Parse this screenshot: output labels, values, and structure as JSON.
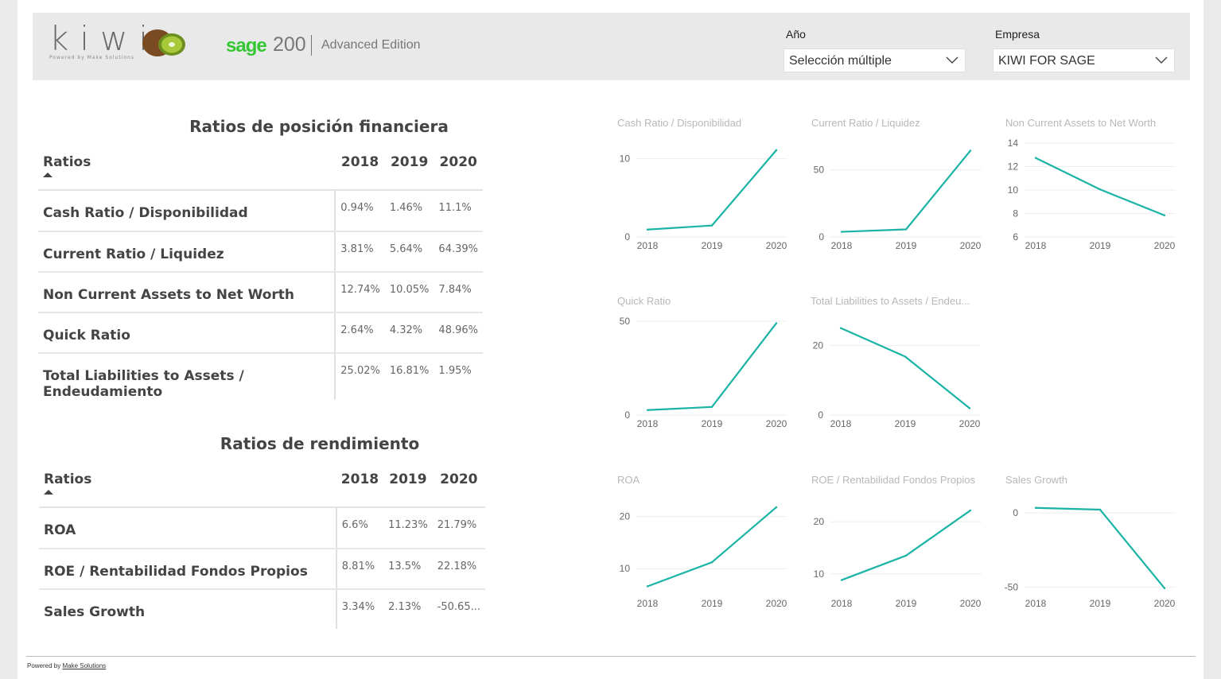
{
  "header": {
    "logo_text": "kiwi",
    "logo_tagline": "Powered by Make Solutions",
    "sage_brand": "sage",
    "sage_number": "200",
    "sage_edition": "Advanced Edition",
    "colors": {
      "kiwi_green": "#8bb63a",
      "sage_green": "#34c733"
    }
  },
  "slicers": {
    "year": {
      "label": "Año",
      "value": "Selección múltiple"
    },
    "company": {
      "label": "Empresa",
      "value": "KIWI FOR SAGE"
    }
  },
  "financial": {
    "title": "Ratios de posición financiera",
    "header": {
      "name": "Ratios",
      "years": [
        "2018",
        "2019",
        "2020"
      ]
    },
    "rows": [
      {
        "name": "Cash Ratio / Disponibilidad",
        "v": [
          "0.94%",
          "1.46%",
          "11.1%"
        ]
      },
      {
        "name": "Current Ratio / Liquidez",
        "v": [
          "3.81%",
          "5.64%",
          "64.39%"
        ]
      },
      {
        "name": "Non Current Assets to Net Worth",
        "v": [
          "12.74%",
          "10.05%",
          "7.84%"
        ]
      },
      {
        "name": "Quick Ratio",
        "v": [
          "2.64%",
          "4.32%",
          "48.96%"
        ]
      },
      {
        "name": "Total Liabilities to Assets / Endeudamiento",
        "v": [
          "25.02%",
          "16.81%",
          "1.95%"
        ]
      }
    ]
  },
  "performance": {
    "title": "Ratios de rendimiento",
    "header": {
      "name": "Ratios",
      "years": [
        "2018",
        "2019",
        "2020"
      ]
    },
    "rows": [
      {
        "name": "ROA",
        "v": [
          "6.6%",
          "11.23%",
          "21.79%"
        ]
      },
      {
        "name": "ROE / Rentabilidad Fondos Propios",
        "v": [
          "8.81%",
          "13.5%",
          "22.18%"
        ]
      },
      {
        "name": "Sales Growth",
        "v": [
          "3.34%",
          "2.13%",
          "-50.65..."
        ]
      }
    ]
  },
  "chart_data": [
    {
      "type": "line",
      "title": "Cash Ratio / Disponibilidad",
      "x": [
        "2018",
        "2019",
        "2020"
      ],
      "values": [
        0.94,
        1.46,
        11.1
      ],
      "yticks": [
        0,
        10
      ],
      "ylim": [
        0,
        12
      ],
      "color": "#1ab3a6"
    },
    {
      "type": "line",
      "title": "Current Ratio / Liquidez",
      "x": [
        "2018",
        "2019",
        "2020"
      ],
      "values": [
        3.81,
        5.64,
        64.39
      ],
      "yticks": [
        0,
        50
      ],
      "ylim": [
        0,
        70
      ],
      "color": "#1ab3a6"
    },
    {
      "type": "line",
      "title": "Non Current Assets to Net Worth",
      "x": [
        "2018",
        "2019",
        "2020"
      ],
      "values": [
        12.74,
        10.05,
        7.84
      ],
      "yticks": [
        6,
        8,
        10,
        12,
        14
      ],
      "ylim": [
        6,
        14
      ],
      "color": "#1ab3a6"
    },
    {
      "type": "line",
      "title": "Quick Ratio",
      "x": [
        "2018",
        "2019",
        "2020"
      ],
      "values": [
        2.64,
        4.32,
        48.96
      ],
      "yticks": [
        0,
        50
      ],
      "ylim": [
        0,
        50
      ],
      "color": "#1ab3a6"
    },
    {
      "type": "line",
      "title": "Total Liabilities to Assets / Endeu...",
      "x": [
        "2018",
        "2019",
        "2020"
      ],
      "values": [
        25.02,
        16.81,
        1.95
      ],
      "yticks": [
        0,
        20
      ],
      "ylim": [
        0,
        27
      ],
      "color": "#1ab3a6"
    },
    {
      "type": "line",
      "title": "ROA",
      "x": [
        "2018",
        "2019",
        "2020"
      ],
      "values": [
        6.6,
        11.23,
        21.79
      ],
      "yticks": [
        10,
        20
      ],
      "ylim": [
        5,
        23
      ],
      "color": "#1ab3a6"
    },
    {
      "type": "line",
      "title": "ROE / Rentabilidad Fondos Propios",
      "x": [
        "2018",
        "2019",
        "2020"
      ],
      "values": [
        8.81,
        13.5,
        22.18
      ],
      "yticks": [
        10,
        20
      ],
      "ylim": [
        6,
        24
      ],
      "color": "#1ab3a6"
    },
    {
      "type": "line",
      "title": "Sales Growth",
      "x": [
        "2018",
        "2019",
        "2020"
      ],
      "values": [
        3.34,
        2.13,
        -50.65
      ],
      "yticks": [
        0,
        -50
      ],
      "ylim": [
        -55,
        8
      ],
      "color": "#1ab3a6"
    }
  ],
  "footer": {
    "prefix": "Powered by",
    "link": "Make Solutions"
  }
}
